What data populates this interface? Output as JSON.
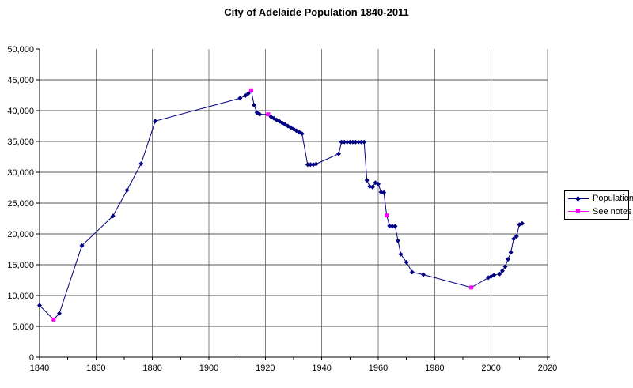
{
  "title": "City of Adelaide Population 1840-2011",
  "colors": {
    "population": "#000080",
    "see_notes": "#FF00FF",
    "grid_vertical": "#808080",
    "grid_horizontal": "#595959",
    "axis": "#000000",
    "background": "#FFFFFF",
    "text": "#000000"
  },
  "legend": {
    "items": [
      {
        "label": "Population",
        "marker": "diamond-icon",
        "color": "#000080"
      },
      {
        "label": "See notes",
        "marker": "square-icon",
        "color": "#FF00FF"
      }
    ]
  },
  "chart_data": {
    "type": "line",
    "title": "City of Adelaide Population 1840-2011",
    "xlabel": "",
    "ylabel": "",
    "xlim": [
      1840,
      2020
    ],
    "ylim": [
      0,
      50000
    ],
    "x_ticks": [
      1840,
      1860,
      1880,
      1900,
      1920,
      1940,
      1960,
      1980,
      2000,
      2020
    ],
    "x_minor_ticks": [
      1850,
      1870,
      1890,
      1910,
      1930,
      1950,
      1970,
      1990,
      2010
    ],
    "y_ticks": [
      0,
      5000,
      10000,
      15000,
      20000,
      25000,
      30000,
      35000,
      40000,
      45000,
      50000
    ],
    "grid": true,
    "legend_position": "right",
    "point_format": [
      "year",
      "population",
      "see_notes_flag"
    ],
    "series": [
      {
        "name": "Population",
        "color": "#000080",
        "marker": "diamond",
        "notes_marker": "square",
        "notes_color": "#FF00FF",
        "points": [
          [
            1840,
            8400,
            0
          ],
          [
            1845,
            6100,
            1
          ],
          [
            1847,
            7100,
            0
          ],
          [
            1855,
            18100,
            0
          ],
          [
            1866,
            22900,
            0
          ],
          [
            1871,
            27100,
            0
          ],
          [
            1876,
            31400,
            0
          ],
          [
            1881,
            38300,
            0
          ],
          [
            1911,
            42000,
            0
          ],
          [
            1913,
            42450,
            0
          ],
          [
            1914,
            42800,
            0
          ],
          [
            1915,
            43300,
            1
          ],
          [
            1916,
            40900,
            0
          ],
          [
            1917,
            39700,
            0
          ],
          [
            1918,
            39400,
            0
          ],
          [
            1921,
            39400,
            1
          ],
          [
            1922,
            39000,
            0
          ],
          [
            1923,
            38750,
            0
          ],
          [
            1924,
            38500,
            0
          ],
          [
            1925,
            38250,
            0
          ],
          [
            1926,
            38000,
            0
          ],
          [
            1927,
            37750,
            0
          ],
          [
            1928,
            37500,
            0
          ],
          [
            1929,
            37250,
            0
          ],
          [
            1930,
            37000,
            0
          ],
          [
            1931,
            36750,
            0
          ],
          [
            1932,
            36500,
            0
          ],
          [
            1933,
            36250,
            0
          ],
          [
            1935,
            31250,
            0
          ],
          [
            1936,
            31250,
            0
          ],
          [
            1937,
            31250,
            0
          ],
          [
            1938,
            31350,
            0
          ],
          [
            1946,
            33000,
            0
          ],
          [
            1947,
            34900,
            0
          ],
          [
            1948,
            34900,
            0
          ],
          [
            1949,
            34900,
            0
          ],
          [
            1950,
            34900,
            0
          ],
          [
            1951,
            34900,
            0
          ],
          [
            1952,
            34900,
            0
          ],
          [
            1953,
            34900,
            0
          ],
          [
            1954,
            34900,
            0
          ],
          [
            1955,
            34900,
            0
          ],
          [
            1956,
            28700,
            0
          ],
          [
            1957,
            27700,
            0
          ],
          [
            1958,
            27600,
            0
          ],
          [
            1959,
            28300,
            0
          ],
          [
            1960,
            28100,
            0
          ],
          [
            1961,
            26800,
            0
          ],
          [
            1962,
            26700,
            0
          ],
          [
            1963,
            23000,
            1
          ],
          [
            1964,
            21300,
            0
          ],
          [
            1965,
            21250,
            0
          ],
          [
            1966,
            21250,
            0
          ],
          [
            1967,
            18900,
            0
          ],
          [
            1968,
            16700,
            0
          ],
          [
            1970,
            15400,
            0
          ],
          [
            1972,
            13800,
            0
          ],
          [
            1976,
            13400,
            0
          ],
          [
            1993,
            11300,
            1
          ],
          [
            1999,
            12900,
            0
          ],
          [
            2000,
            13100,
            0
          ],
          [
            2001,
            13300,
            0
          ],
          [
            2003,
            13500,
            0
          ],
          [
            2004,
            14000,
            0
          ],
          [
            2005,
            14700,
            0
          ],
          [
            2006,
            15900,
            0
          ],
          [
            2007,
            17000,
            0
          ],
          [
            2008,
            19200,
            0
          ],
          [
            2009,
            19600,
            0
          ],
          [
            2010,
            21500,
            0
          ],
          [
            2011,
            21700,
            0
          ]
        ]
      }
    ]
  }
}
